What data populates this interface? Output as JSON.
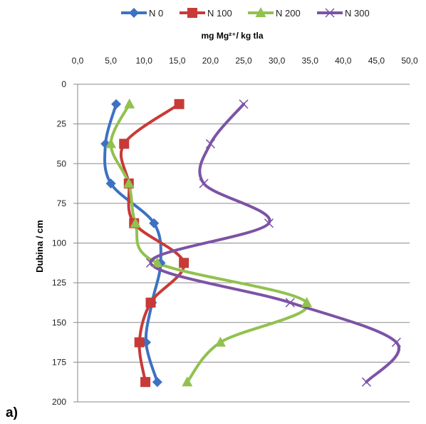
{
  "chart_data": {
    "type": "line",
    "title": "",
    "xlabel": "mg Mg²⁺/ kg tla",
    "ylabel": "Dubina  / cm",
    "panel_label": "a)",
    "x_ticks": [
      "0,0",
      "5,0",
      "10,0",
      "15,0",
      "20,0",
      "25,0",
      "30,0",
      "35,0",
      "40,0",
      "45,0",
      "50,0"
    ],
    "y_ticks": [
      "0",
      "25",
      "50",
      "75",
      "100",
      "125",
      "150",
      "175",
      "200"
    ],
    "xlim": [
      0,
      50
    ],
    "ylim": [
      0,
      200
    ],
    "x_axis_position": "top",
    "y_axis_inverted": true,
    "grid": "horizontal",
    "legend_position": "top",
    "depths": [
      12.5,
      37.5,
      62.5,
      87.5,
      112.5,
      137.5,
      162.5,
      187.5
    ],
    "series": [
      {
        "name": "N 0",
        "color": "#3d72c2",
        "marker": "diamond",
        "values": [
          5.8,
          4.2,
          5.0,
          11.5,
          12.5,
          11.2,
          10.3,
          12.0
        ]
      },
      {
        "name": "N 100",
        "color": "#c83a37",
        "marker": "square",
        "values": [
          15.3,
          7.0,
          7.7,
          8.5,
          16.0,
          11.0,
          9.3,
          10.2
        ]
      },
      {
        "name": "N 200",
        "color": "#92c14f",
        "marker": "triangle",
        "values": [
          7.8,
          5.0,
          7.7,
          8.7,
          12.0,
          34.5,
          21.5,
          16.5
        ]
      },
      {
        "name": "N 300",
        "color": "#7c53a6",
        "marker": "x",
        "values": [
          25.0,
          20.0,
          19.0,
          28.8,
          11.0,
          32.0,
          48.0,
          43.5
        ]
      }
    ]
  }
}
